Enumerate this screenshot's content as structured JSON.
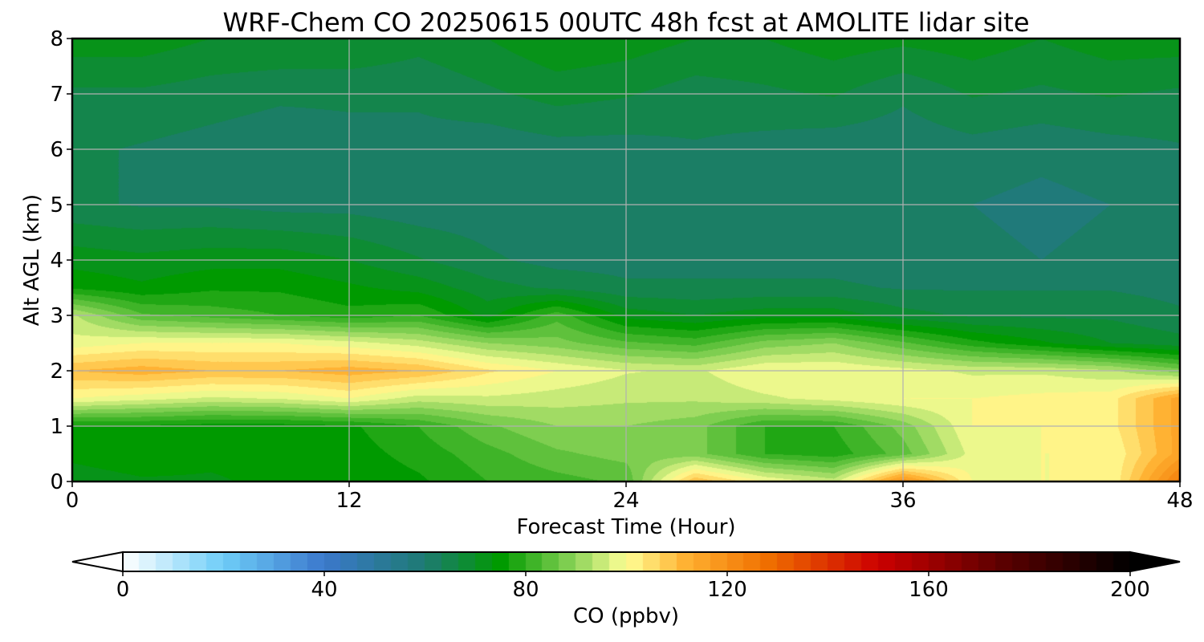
{
  "chart_data": {
    "type": "heatmap",
    "title": "WRF-Chem CO  20250615 00UTC 48h fcst at AMOLITE lidar site",
    "xlabel": "Forecast Time (Hour)",
    "ylabel": "Alt AGL (km)",
    "xlim": [
      0,
      48
    ],
    "ylim": [
      0,
      8
    ],
    "xticks": [
      0,
      12,
      24,
      36,
      48
    ],
    "yticks": [
      0,
      1,
      2,
      3,
      4,
      5,
      6,
      7,
      8
    ],
    "grid": true,
    "colorbar": {
      "label": "CO  (ppbv)",
      "min": 0,
      "max": 200,
      "ticks": [
        0,
        40,
        80,
        120,
        160,
        200
      ],
      "orientation": "horizontal",
      "placement": "bottom",
      "extend": "both",
      "stops": [
        {
          "value": 0,
          "color": "#ffffff"
        },
        {
          "value": 20,
          "color": "#6ecdf8"
        },
        {
          "value": 40,
          "color": "#3b78cc"
        },
        {
          "value": 60,
          "color": "#1e7a72"
        },
        {
          "value": 75,
          "color": "#009a00"
        },
        {
          "value": 90,
          "color": "#8ed45a"
        },
        {
          "value": 100,
          "color": "#ffff96"
        },
        {
          "value": 112,
          "color": "#ffb030"
        },
        {
          "value": 128,
          "color": "#f07000"
        },
        {
          "value": 150,
          "color": "#cc0000"
        },
        {
          "value": 175,
          "color": "#5a0000"
        },
        {
          "value": 200,
          "color": "#000000"
        }
      ],
      "over_color": "#000000",
      "under_color": "#ffffff"
    },
    "field": {
      "x": [
        0,
        3,
        6,
        9,
        12,
        15,
        18,
        21,
        24,
        27,
        30,
        33,
        36,
        39,
        42,
        45,
        48
      ],
      "y": [
        0,
        0.5,
        1,
        1.5,
        2,
        2.5,
        3,
        3.5,
        4,
        5,
        6,
        7,
        8
      ],
      "values": [
        [
          72,
          73,
          73,
          74,
          74,
          76,
          80,
          82,
          84,
          110,
          100,
          95,
          120,
          100,
          100,
          100,
          125
        ],
        [
          74,
          75,
          74,
          74,
          75,
          78,
          82,
          86,
          88,
          88,
          80,
          78,
          85,
          98,
          100,
          100,
          115
        ],
        [
          76,
          76,
          75,
          75,
          76,
          80,
          86,
          90,
          90,
          88,
          80,
          80,
          88,
          100,
          100,
          102,
          115
        ],
        [
          100,
          98,
          96,
          97,
          100,
          95,
          96,
          95,
          94,
          94,
          96,
          98,
          100,
          100,
          101,
          102,
          115
        ],
        [
          110,
          112,
          110,
          110,
          112,
          110,
          104,
          100,
          97,
          96,
          100,
          100,
          98,
          96,
          96,
          94,
          88
        ],
        [
          98,
          100,
          100,
          100,
          98,
          95,
          90,
          88,
          84,
          82,
          88,
          90,
          84,
          78,
          74,
          70,
          68
        ],
        [
          94,
          84,
          82,
          80,
          78,
          80,
          72,
          82,
          72,
          70,
          72,
          72,
          68,
          66,
          66,
          66,
          64
        ],
        [
          76,
          74,
          76,
          76,
          74,
          72,
          68,
          66,
          64,
          64,
          64,
          64,
          63,
          63,
          63,
          63,
          62
        ],
        [
          72,
          71,
          72,
          72,
          70,
          67,
          64,
          62,
          62,
          62,
          62,
          62,
          61,
          61,
          60,
          61,
          61
        ],
        [
          64,
          63,
          63,
          62,
          62,
          61,
          61,
          60,
          61,
          62,
          60,
          60,
          61,
          60,
          59,
          60,
          61
        ],
        [
          64,
          63,
          62,
          61,
          62,
          62,
          61,
          62,
          62,
          63,
          62,
          61,
          61,
          62,
          61,
          62,
          63
        ],
        [
          66,
          66,
          65,
          64,
          64,
          64,
          66,
          68,
          67,
          65,
          66,
          67,
          64,
          67,
          66,
          67,
          66
        ],
        [
          72,
          72,
          70,
          70,
          70,
          68,
          70,
          73,
          72,
          70,
          70,
          72,
          71,
          72,
          70,
          72,
          72
        ]
      ]
    }
  }
}
